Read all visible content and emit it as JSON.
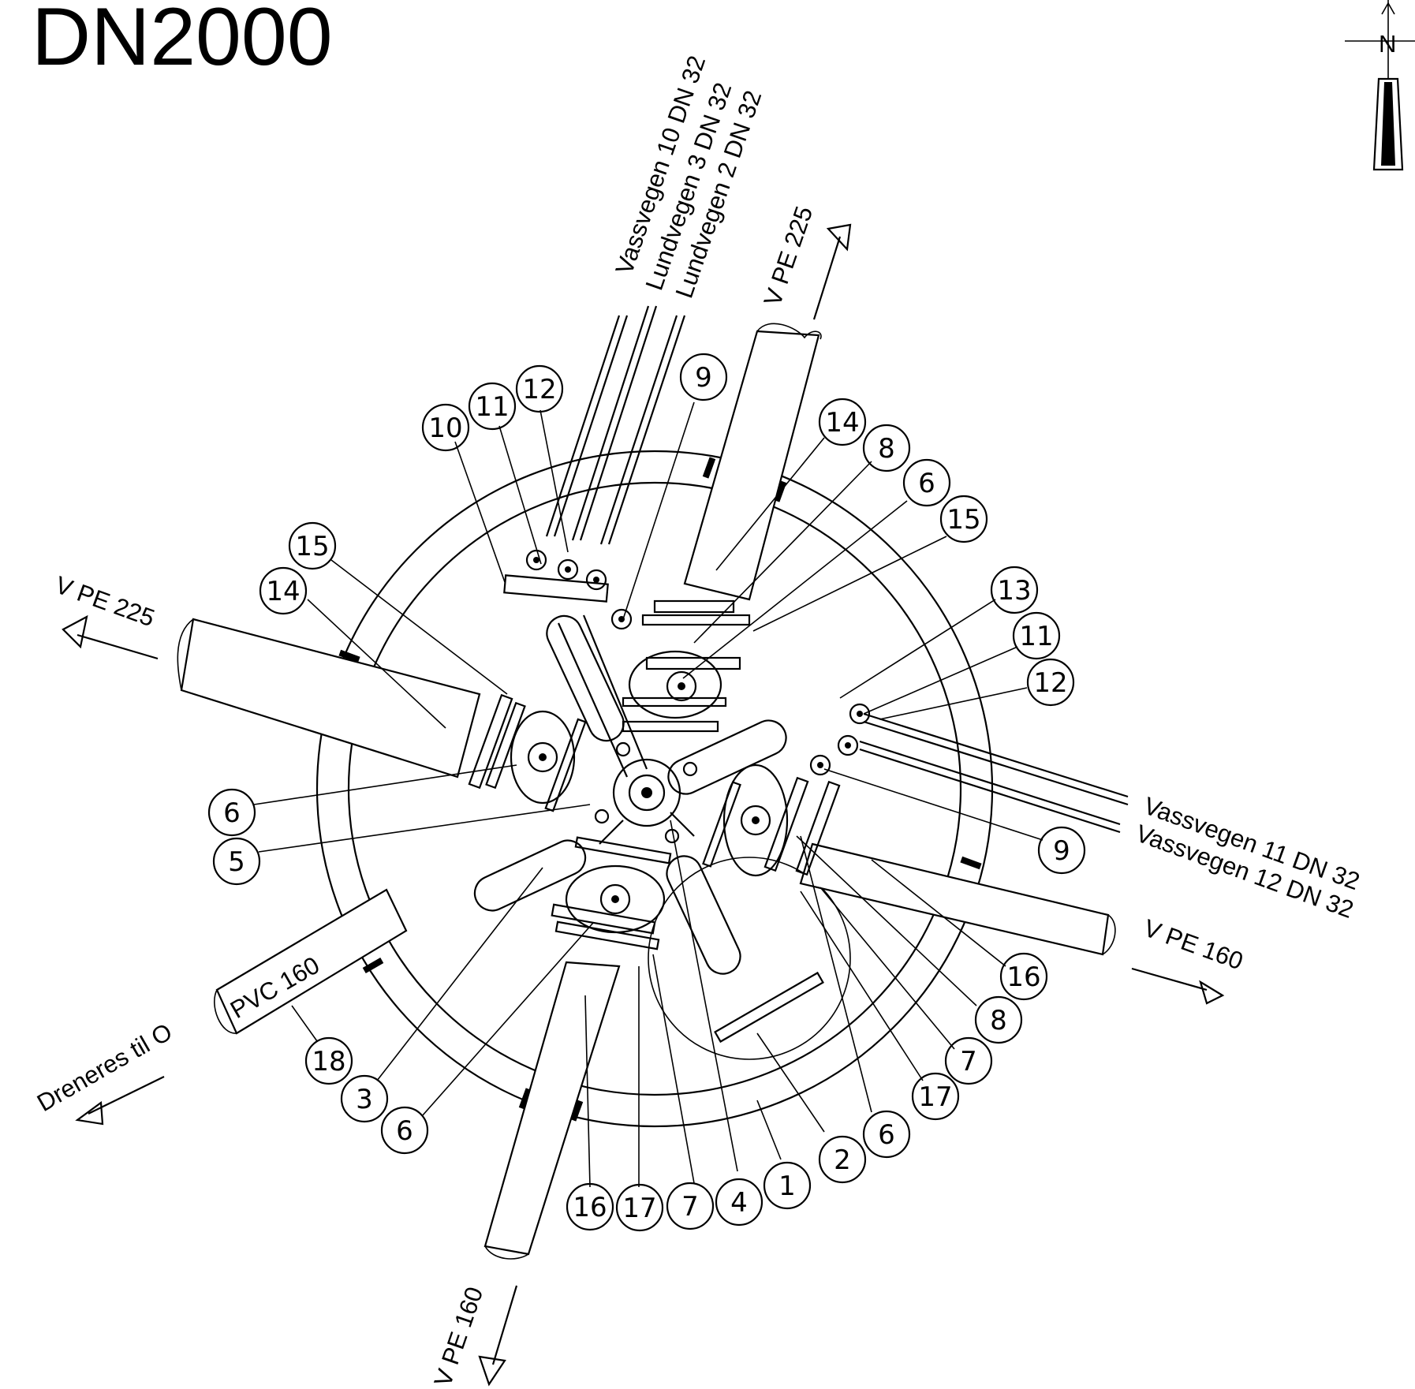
{
  "title": "DN2000",
  "north_arrow": {
    "letter": "N",
    "icon": "north-arrow-icon"
  },
  "pipe_labels": {
    "vassvegen_10": "Vassvegen 10 DN 32",
    "lundvegen_3": "Lundvegen 3 DN 32",
    "lundvegen_2": "Lundvegen 2 DN 32",
    "vpe225_top": "V PE 225",
    "vpe225_left": "V PE 225",
    "vassvegen_11": "Vassvegen 11 DN 32",
    "vassvegen_12": "Vassvegen 12 DN 32",
    "vpe160_right": "V PE 160",
    "vpe160_bottom": "V PE 160",
    "pvc160": "PVC 160",
    "dreneres": "Dreneres til O"
  },
  "callouts": {
    "c10a": "10",
    "c11a": "11",
    "c12a": "12",
    "c9a": "9",
    "c14a": "14",
    "c8a": "8",
    "c6a": "6",
    "c15a": "15",
    "c13b": "13",
    "c11b": "11",
    "c12b": "12",
    "c15c": "15",
    "c14c": "14",
    "c6d": "6",
    "c5d": "5",
    "c9e": "9",
    "c16e": "16",
    "c8e": "8",
    "c7e": "7",
    "c17e": "17",
    "c6e": "6",
    "c18f": "18",
    "c3f": "3",
    "c6f": "6",
    "c2g": "2",
    "c1g": "1",
    "c4g": "4",
    "c7g": "7",
    "c17g": "17",
    "c16g": "16"
  }
}
